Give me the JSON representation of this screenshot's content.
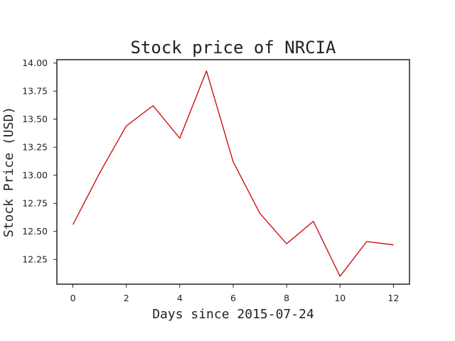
{
  "chart_data": {
    "type": "line",
    "title": "Stock price of NRCIA",
    "xlabel": "Days since 2015-07-24",
    "ylabel": "Stock Price (USD)",
    "x": [
      0,
      1,
      2,
      3,
      4,
      5,
      6,
      7,
      8,
      9,
      10,
      11,
      12
    ],
    "series": [
      {
        "values": [
          12.56,
          13.02,
          13.44,
          13.62,
          13.33,
          13.93,
          13.12,
          12.66,
          12.39,
          12.59,
          12.1,
          12.41,
          12.38
        ],
        "color": "#cc0000"
      }
    ],
    "xlim": [
      -0.6,
      12.6
    ],
    "ylim": [
      12.03,
      14.03
    ],
    "xticks": [
      0,
      2,
      4,
      6,
      8,
      10,
      12
    ],
    "yticks": [
      12.25,
      12.5,
      12.75,
      13.0,
      13.25,
      13.5,
      13.75,
      14.0
    ],
    "xtick_labels": [
      "0",
      "2",
      "4",
      "6",
      "8",
      "10",
      "12"
    ],
    "ytick_labels": [
      "12.25",
      "12.50",
      "12.75",
      "13.00",
      "13.25",
      "13.50",
      "13.75",
      "14.00"
    ],
    "grid": false,
    "legend": "none"
  }
}
